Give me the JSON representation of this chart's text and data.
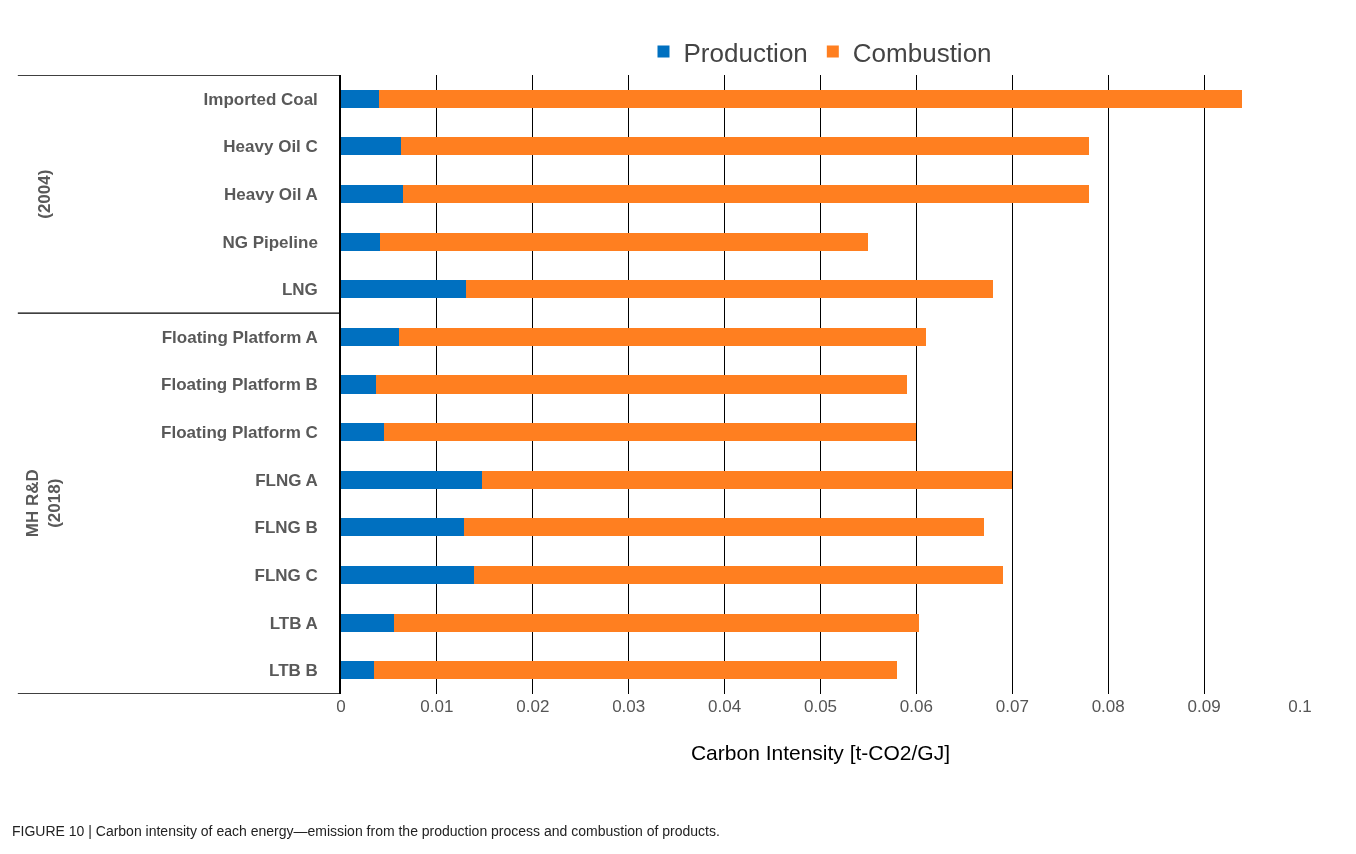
{
  "chart_data": {
    "type": "bar",
    "orientation": "horizontal",
    "stacked": true,
    "categories": [
      "Imported Coal",
      "Heavy Oil C",
      "Heavy Oil A",
      "NG Pipeline",
      "LNG",
      "Floating Platform A",
      "Floating Platform B",
      "Floating Platform C",
      "FLNG A",
      "FLNG B",
      "FLNG C",
      "LTB A",
      "LTB B"
    ],
    "series": [
      {
        "name": "Production",
        "color": "#0070c0",
        "values": [
          0.004,
          0.0063,
          0.0065,
          0.0041,
          0.013,
          0.006,
          0.0036,
          0.0045,
          0.0147,
          0.0128,
          0.0139,
          0.0055,
          0.0034
        ]
      },
      {
        "name": "Combustion",
        "color": "#ff7f20",
        "values": [
          0.09,
          0.0717,
          0.0715,
          0.0509,
          0.055,
          0.055,
          0.0554,
          0.0555,
          0.0553,
          0.0542,
          0.0551,
          0.0548,
          0.0546
        ]
      }
    ],
    "xlabel": "Carbon Intensity [t-CO2/GJ]",
    "xlim": [
      0,
      0.1
    ],
    "xticks": [
      0,
      0.01,
      0.02,
      0.03,
      0.04,
      0.05,
      0.06,
      0.07,
      0.08,
      0.09,
      0.1
    ],
    "grid": "x",
    "legend": "top",
    "annotations": [
      "(2004)",
      "MH R&D\n(2018)",
      "FIGURE 10 | Carbon intensity of each energy—emission from the production process and combustion of products."
    ]
  }
}
